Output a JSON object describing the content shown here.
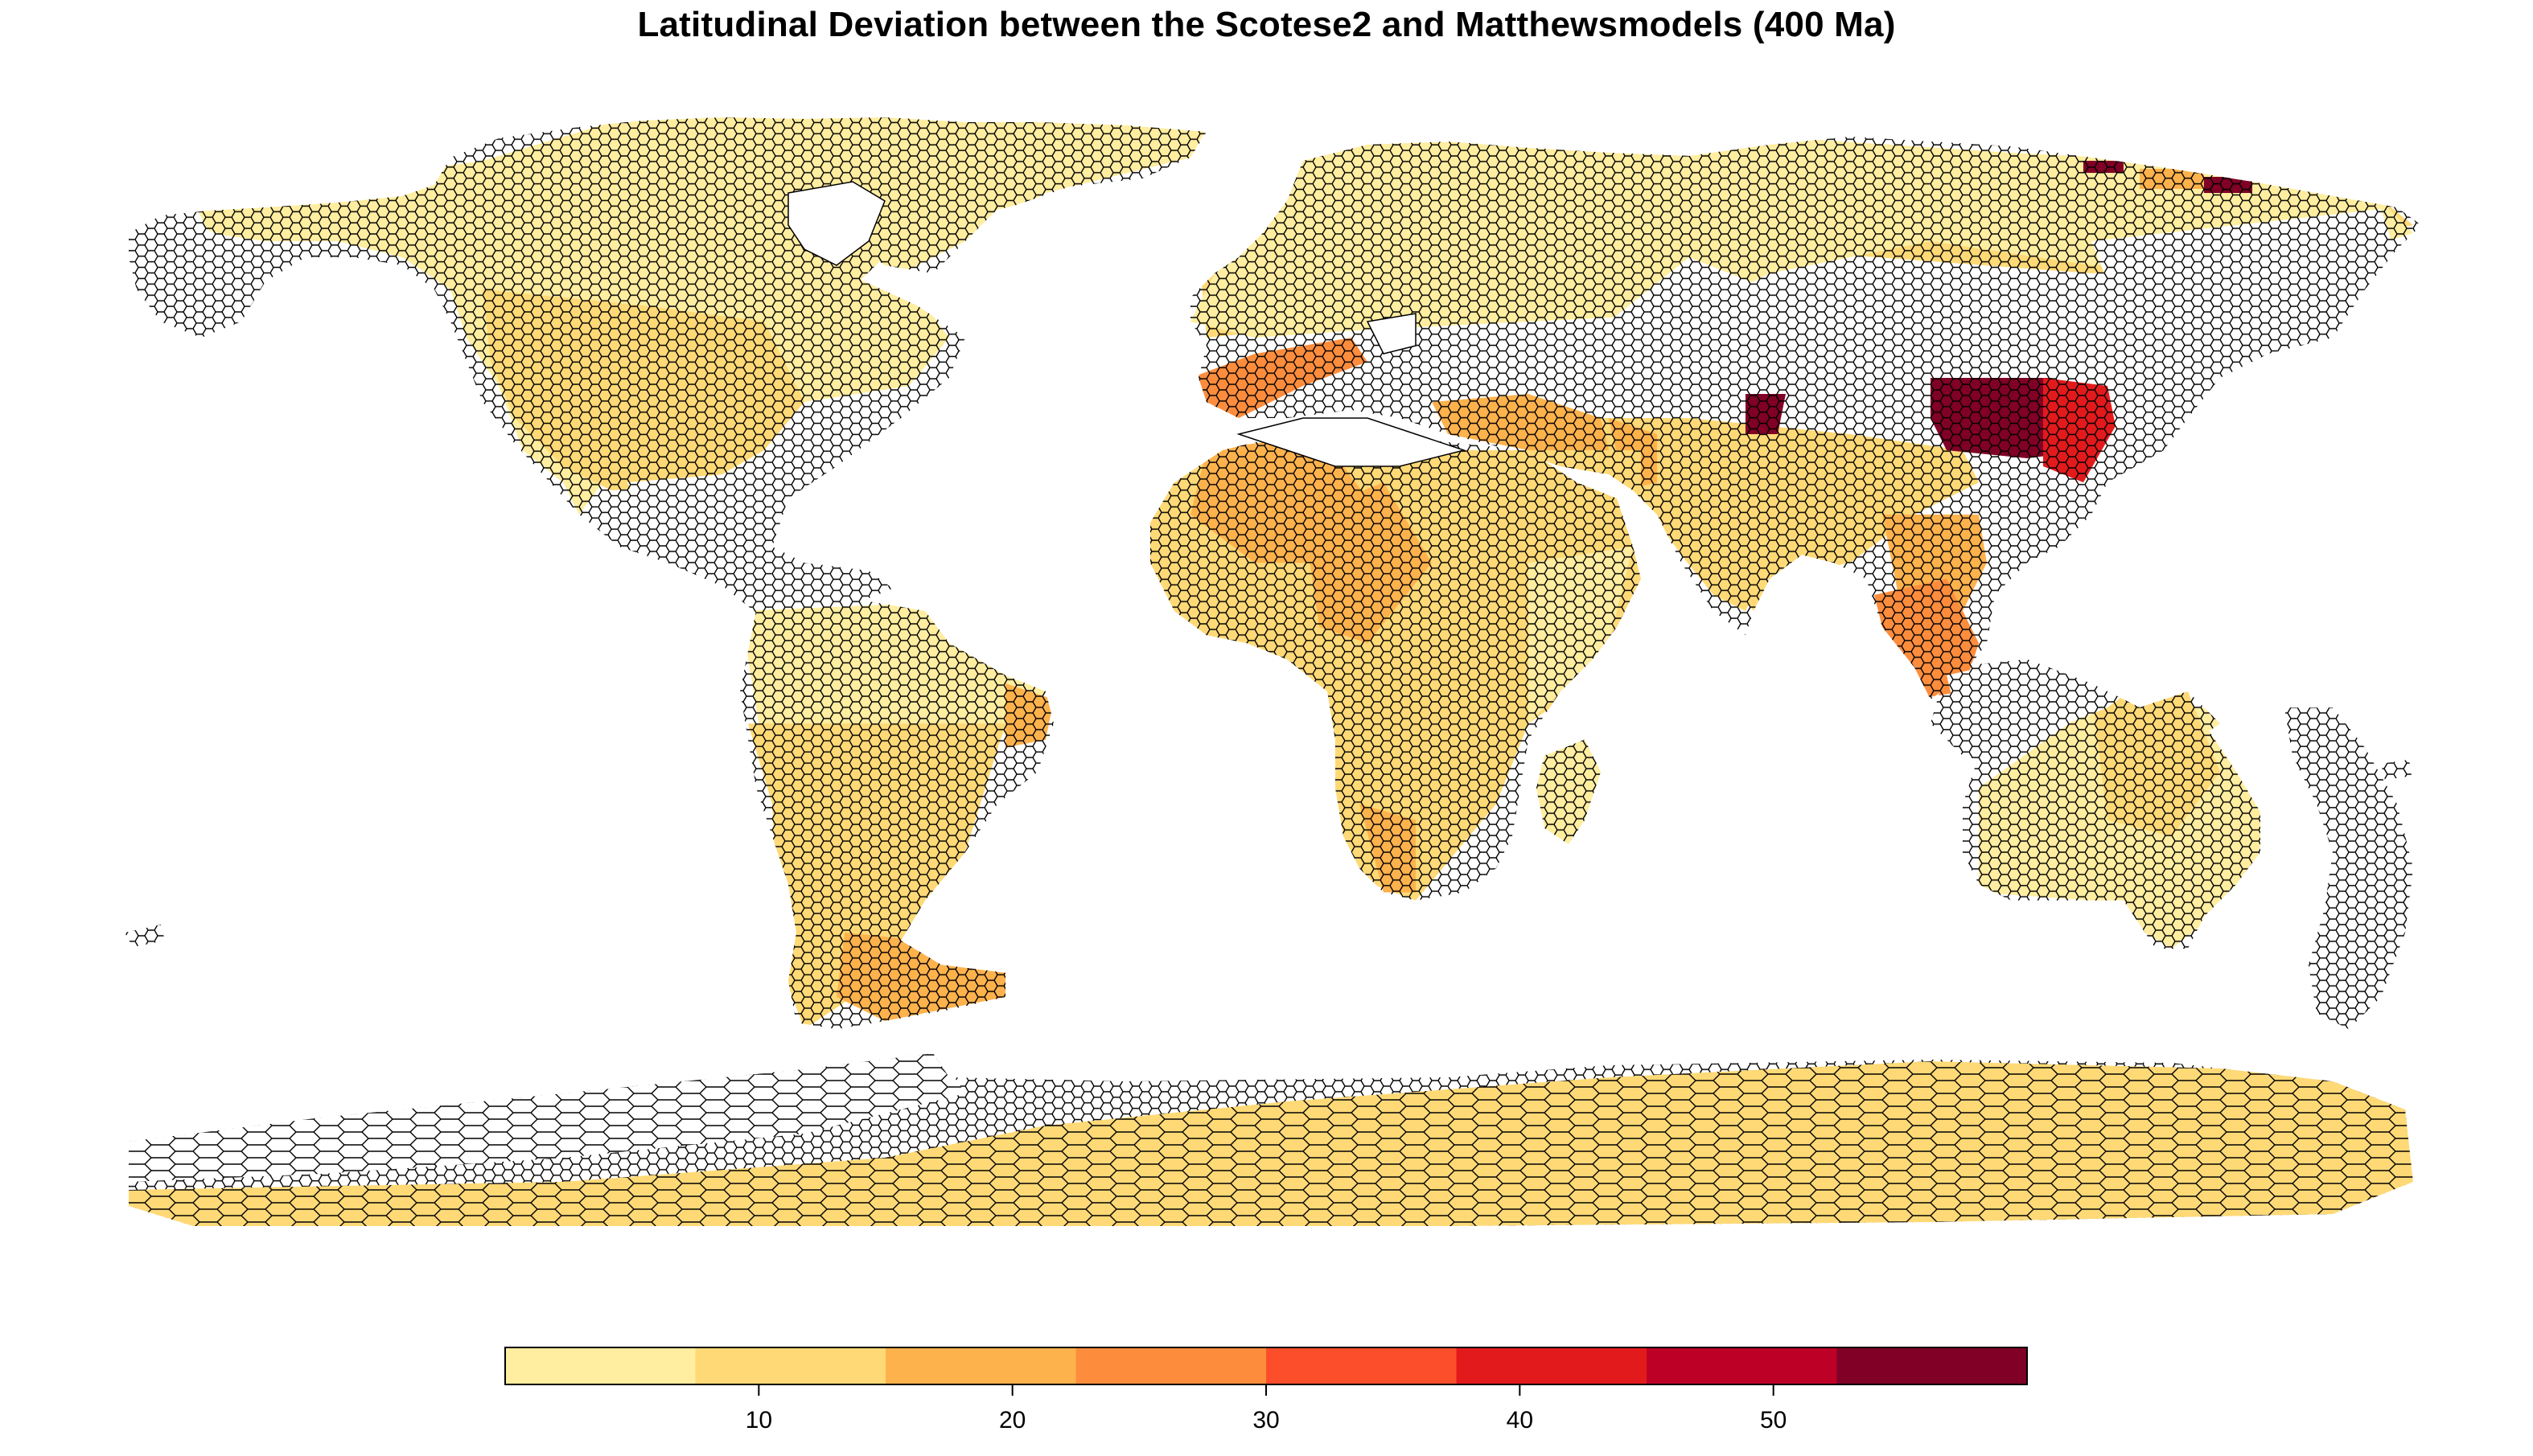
{
  "title": "Latitudinal Deviation between the Scotese2 and Matthewsmodels (400 Ma)",
  "legend": {
    "min": 0,
    "max": 60,
    "ticks": [
      10,
      20,
      30,
      40,
      50
    ],
    "bins": [
      {
        "from": 0,
        "to": 7.5,
        "color": "#FFEDA0"
      },
      {
        "from": 7.5,
        "to": 15,
        "color": "#FED976"
      },
      {
        "from": 15,
        "to": 22.5,
        "color": "#FEB24C"
      },
      {
        "from": 22.5,
        "to": 30,
        "color": "#FD8D3C"
      },
      {
        "from": 30,
        "to": 37.5,
        "color": "#FC4E2A"
      },
      {
        "from": 37.5,
        "to": 45,
        "color": "#E31A1C"
      },
      {
        "from": 45,
        "to": 52.5,
        "color": "#BD0026"
      },
      {
        "from": 52.5,
        "to": 60,
        "color": "#800026"
      }
    ]
  },
  "no_data_color": "#FFFFFF",
  "outline_color": "#000000"
}
